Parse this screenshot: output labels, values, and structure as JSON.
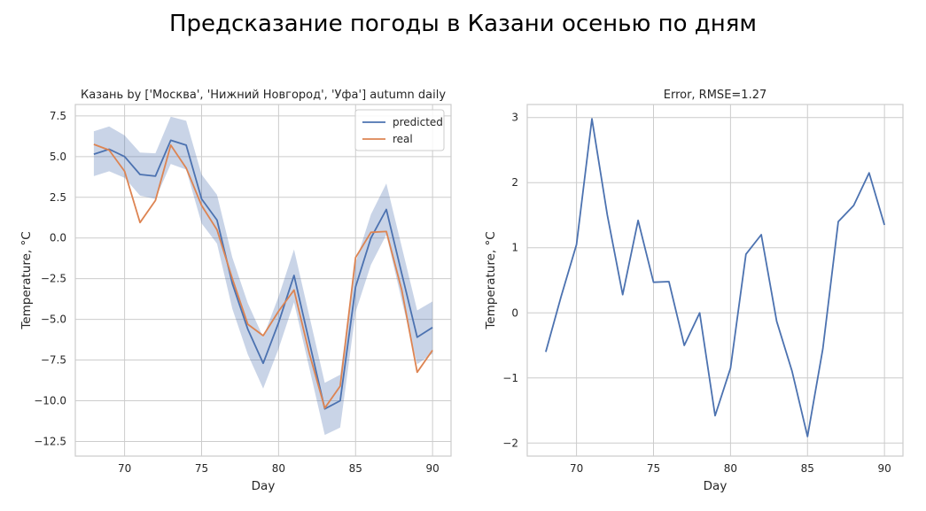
{
  "suptitle": "Предсказание погоды в Казани осенью по дням",
  "colors": {
    "predicted": "#4c72b0",
    "real": "#dd8452",
    "band": "#4c72b0",
    "grid": "#cccccc",
    "frame": "#cccccc"
  },
  "chart_data": [
    {
      "type": "line",
      "title": "Казань by ['Москва', 'Нижний Новгород', 'Уфа'] autumn daily",
      "xlabel": "Day",
      "ylabel": "Temperature, °C",
      "xlim": [
        66.8,
        91.2
      ],
      "ylim": [
        -13.4,
        8.2
      ],
      "xticks": [
        70,
        75,
        80,
        85,
        90
      ],
      "yticks": [
        7.5,
        5.0,
        2.5,
        0.0,
        -2.5,
        -5.0,
        -7.5,
        -10.0,
        -12.5
      ],
      "ytick_labels": [
        "7.5",
        "5.0",
        "2.5",
        "0.0",
        "−2.5",
        "−5.0",
        "−7.5",
        "−10.0",
        "−12.5"
      ],
      "grid": true,
      "legend": {
        "position": "top-right",
        "entries": [
          "predicted",
          "real"
        ]
      },
      "x": [
        68,
        69,
        70,
        71,
        72,
        73,
        74,
        75,
        76,
        77,
        78,
        79,
        80,
        81,
        82,
        83,
        84,
        85,
        86,
        87,
        88,
        89,
        90
      ],
      "series": [
        {
          "name": "predicted",
          "values": [
            5.15,
            5.45,
            5.0,
            3.9,
            3.8,
            6.0,
            5.7,
            2.4,
            1.1,
            -2.8,
            -5.6,
            -7.7,
            -5.2,
            -2.3,
            -6.4,
            -10.5,
            -10.0,
            -3.0,
            0.0,
            1.75,
            -2.2,
            -6.1,
            -5.5
          ]
        },
        {
          "name": "real",
          "values": [
            5.75,
            5.4,
            4.1,
            0.95,
            2.3,
            5.7,
            4.3,
            2.0,
            0.5,
            -2.5,
            -5.3,
            -6.0,
            -4.5,
            -3.2,
            -7.1,
            -10.45,
            -9.1,
            -1.2,
            0.35,
            0.4,
            -3.2,
            -8.25,
            -6.9
          ]
        }
      ],
      "band": {
        "upper": [
          6.55,
          6.85,
          6.3,
          5.25,
          5.2,
          7.45,
          7.2,
          3.9,
          2.65,
          -1.2,
          -4.0,
          -6.1,
          -3.6,
          -0.7,
          -4.8,
          -8.9,
          -8.4,
          -1.5,
          1.45,
          3.35,
          -0.55,
          -4.45,
          -3.9
        ],
        "lower": [
          3.8,
          4.1,
          3.7,
          2.6,
          2.4,
          4.55,
          4.2,
          0.9,
          -0.35,
          -4.35,
          -7.15,
          -9.25,
          -6.8,
          -3.95,
          -8.0,
          -12.1,
          -11.65,
          -4.55,
          -1.65,
          0.2,
          -3.85,
          -7.75,
          -7.1
        ]
      }
    },
    {
      "type": "line",
      "title": "Error, RMSE=1.27",
      "xlabel": "Day",
      "ylabel": "Temperature, °C",
      "xlim": [
        66.8,
        91.2
      ],
      "ylim": [
        -2.2,
        3.2
      ],
      "xticks": [
        70,
        75,
        80,
        85,
        90
      ],
      "yticks": [
        3,
        2,
        1,
        0,
        -1,
        -2
      ],
      "ytick_labels": [
        "3",
        "2",
        "1",
        "0",
        "−1",
        "−2"
      ],
      "grid": true,
      "x": [
        68,
        69,
        70,
        71,
        72,
        73,
        74,
        75,
        76,
        77,
        78,
        79,
        80,
        81,
        82,
        83,
        84,
        85,
        86,
        87,
        88,
        89,
        90
      ],
      "series": [
        {
          "name": "",
          "values": [
            -0.6,
            0.25,
            1.05,
            2.98,
            1.5,
            0.28,
            1.42,
            0.47,
            0.48,
            -0.5,
            0.0,
            -1.58,
            -0.85,
            0.9,
            1.2,
            -0.13,
            -0.9,
            -1.9,
            -0.55,
            1.4,
            1.65,
            2.15,
            1.35
          ]
        }
      ]
    }
  ]
}
